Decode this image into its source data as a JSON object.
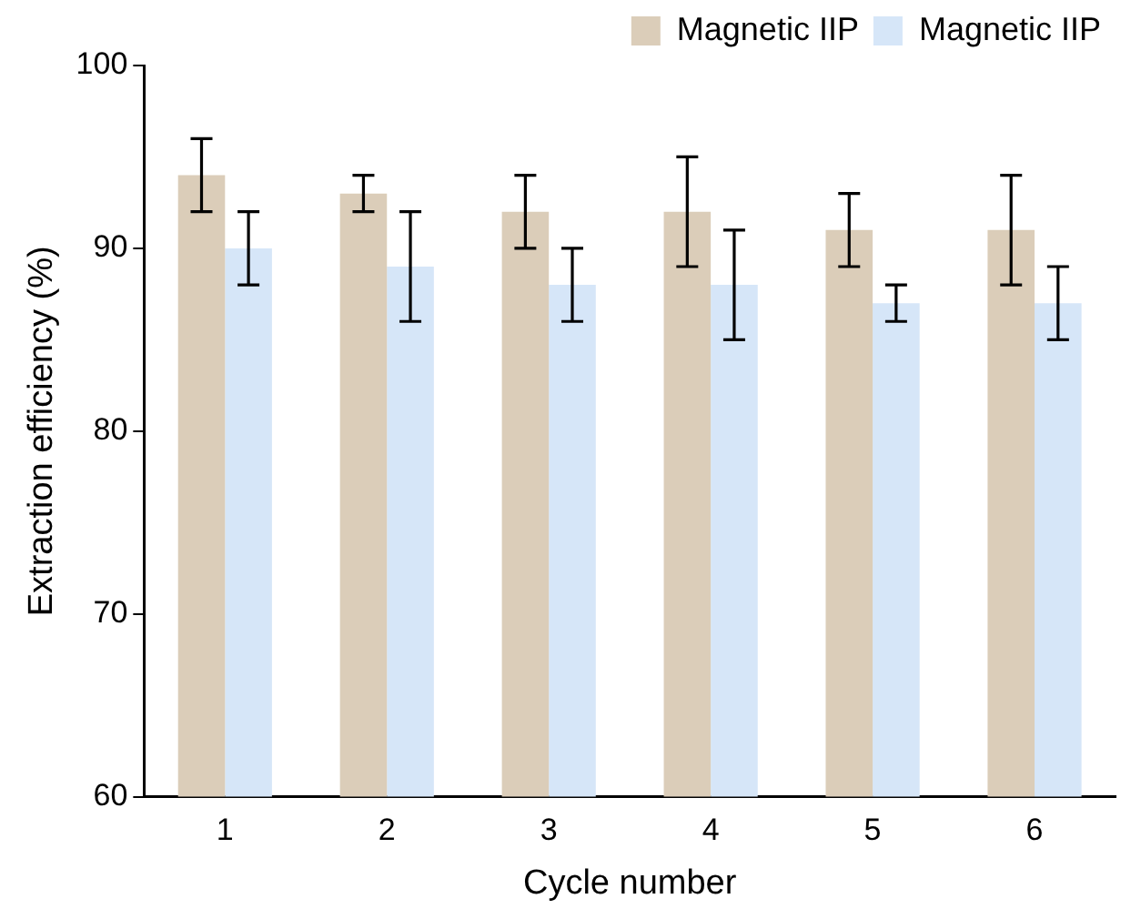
{
  "chart_data": {
    "type": "bar",
    "xlabel": "Cycle number",
    "ylabel": "Extraction efficiency (%)",
    "categories": [
      "1",
      "2",
      "3",
      "4",
      "5",
      "6"
    ],
    "series": [
      {
        "name": "Magnetic IIP",
        "color": "#dbcdb9",
        "values": [
          94,
          93,
          92,
          92,
          91,
          91
        ],
        "errors": [
          2,
          1,
          2,
          3,
          2,
          3
        ]
      },
      {
        "name": "Magnetic IIP",
        "color": "#d6e6f8",
        "values": [
          90,
          89,
          88,
          88,
          87,
          87
        ],
        "errors": [
          2,
          3,
          2,
          3,
          1,
          2
        ]
      }
    ],
    "ylim": [
      60,
      100
    ],
    "yticks": [
      60,
      70,
      80,
      90,
      100
    ],
    "grid": false,
    "legend": "top right"
  }
}
